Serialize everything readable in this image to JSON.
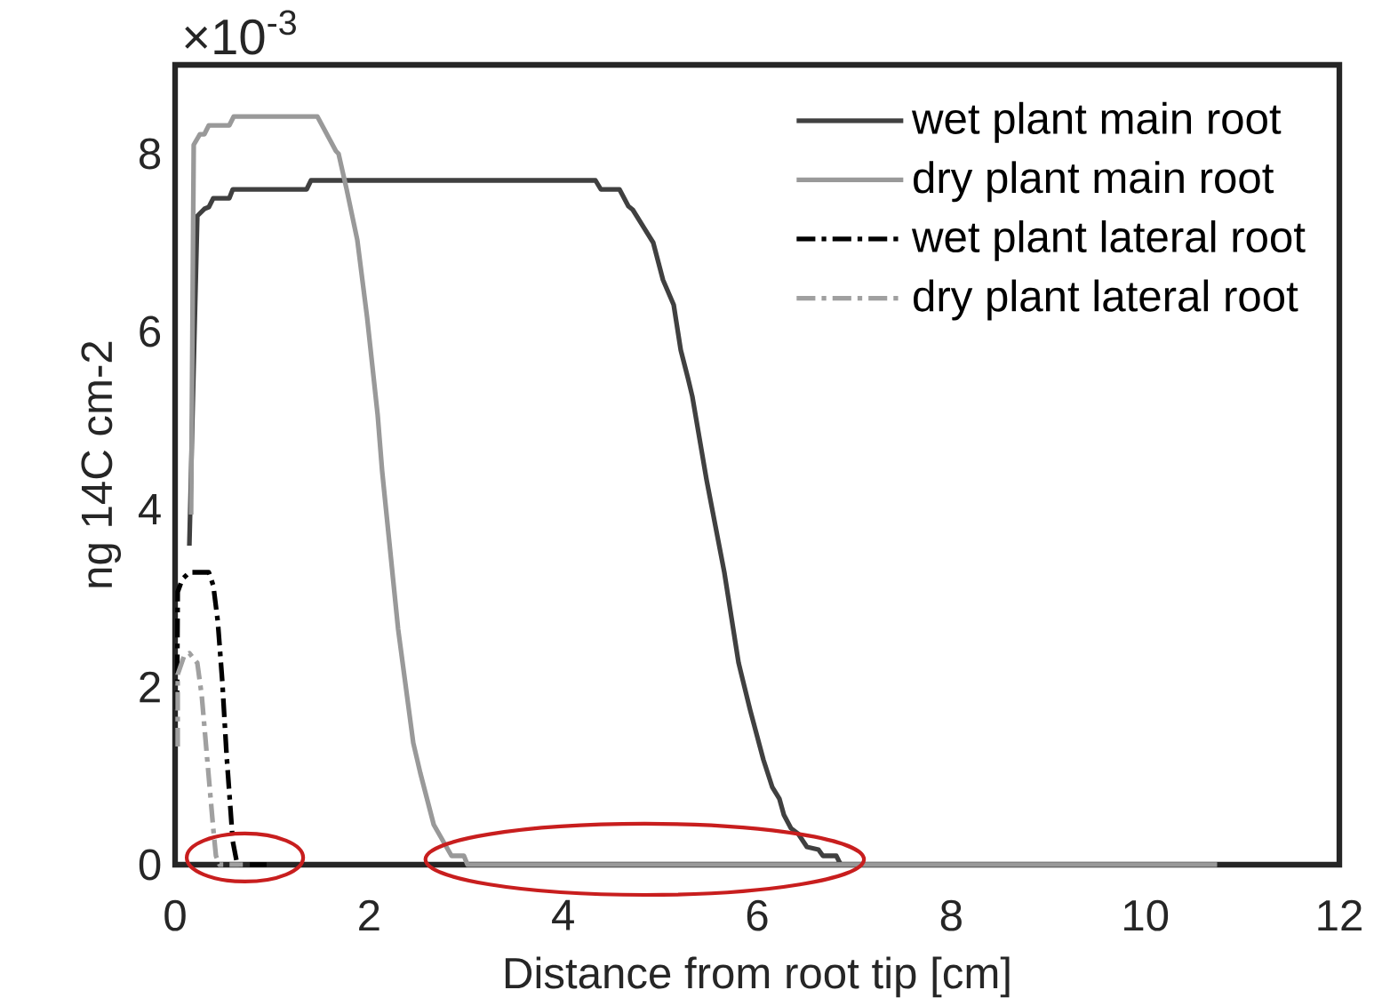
{
  "chart_data": {
    "type": "line",
    "xlabel": "Distance from root tip [cm]",
    "ylabel": "ng 14C cm-2",
    "annotations": [
      "×10$^{-3}$"
    ],
    "xlim": [
      0,
      12
    ],
    "ylim": [
      0,
      9
    ],
    "xticks": [
      0,
      2,
      4,
      6,
      8,
      10,
      12
    ],
    "yticks": [
      0,
      2,
      4,
      6,
      8
    ],
    "legend": "top right",
    "grid": false,
    "marker": "none",
    "series": [
      {
        "name": "wet plant main root",
        "color": "#404040",
        "line_style": "solid",
        "x": [
          0.147,
          0.229,
          0.302,
          0.348,
          0.394,
          0.559,
          0.595,
          1.356,
          1.401,
          4.333,
          4.388,
          4.58,
          4.672,
          4.717,
          4.928,
          5.029,
          5.139,
          5.212,
          5.285,
          5.331,
          5.478,
          5.661,
          5.808,
          5.927,
          6.064,
          6.156,
          6.229,
          6.275,
          6.348,
          6.421,
          6.512,
          6.631,
          6.677,
          6.815,
          6.861,
          10.74
        ],
        "values": [
          3.59,
          7.3,
          7.38,
          7.4,
          7.5,
          7.5,
          7.6,
          7.6,
          7.7,
          7.7,
          7.6,
          7.6,
          7.41,
          7.37,
          7.0,
          6.58,
          6.3,
          5.79,
          5.48,
          5.27,
          4.33,
          3.29,
          2.27,
          1.74,
          1.18,
          0.87,
          0.74,
          0.56,
          0.41,
          0.35,
          0.2,
          0.17,
          0.1,
          0.1,
          0,
          0
        ]
      },
      {
        "name": "dry plant main root",
        "color": "#999999",
        "line_style": "solid",
        "x": [
          0.165,
          0.192,
          0.256,
          0.302,
          0.348,
          0.559,
          0.605,
          1.466,
          1.658,
          1.685,
          1.768,
          1.878,
          1.979,
          2.088,
          2.134,
          2.299,
          2.455,
          2.528,
          2.666,
          2.849,
          2.977,
          3.014,
          10.74
        ],
        "values": [
          3.94,
          8.1,
          8.22,
          8.22,
          8.32,
          8.32,
          8.42,
          8.42,
          8.03,
          8.0,
          7.6,
          7.03,
          6.16,
          5.06,
          4.43,
          2.65,
          1.37,
          1.03,
          0.45,
          0.1,
          0.1,
          0,
          0
        ]
      },
      {
        "name": "wet plant lateral root",
        "color": "#000000",
        "line_style": "dashdot",
        "x": [
          0.02,
          0.027,
          0.073,
          0.147,
          0.348,
          0.394,
          0.44,
          0.486,
          0.531,
          0.595,
          0.641,
          0.943
        ],
        "values": [
          1.75,
          3.07,
          3.21,
          3.29,
          3.29,
          3.14,
          2.74,
          2.07,
          1.23,
          0.26,
          0,
          0
        ]
      },
      {
        "name": "dry plant lateral root",
        "color": "#a0a0a0",
        "line_style": "dashdot",
        "x": [
          0.027,
          0.027,
          0.09,
          0.147,
          0.229,
          0.275,
          0.33,
          0.394,
          0.421,
          0.458,
          0.7
        ],
        "values": [
          1.33,
          2.14,
          2.34,
          2.38,
          2.27,
          1.9,
          1.2,
          0.4,
          0.1,
          0,
          0
        ]
      }
    ]
  }
}
